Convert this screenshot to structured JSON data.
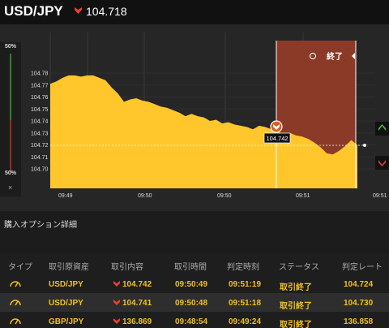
{
  "header": {
    "title": "USD/JPY",
    "price": "104.718",
    "direction": "down"
  },
  "chart": {
    "y_ticks": [
      "104.78",
      "104.77",
      "104.76",
      "104.75",
      "104.74",
      "104.73",
      "104.72",
      "104.71",
      "104.70"
    ],
    "x_ticks": [
      "09:49",
      "09:50",
      "09:50",
      "09:51",
      "09:51"
    ],
    "end_label": "終了",
    "current_price_label": "104.742",
    "percent_top": "50%",
    "percent_bottom": "50%",
    "close_glyph": "×",
    "colors": {
      "fill": "#ffc72c",
      "period": "#8c3a28",
      "bg": "#262626"
    },
    "price_series": [
      104.771,
      104.773,
      104.776,
      104.778,
      104.778,
      104.777,
      104.778,
      104.778,
      104.776,
      104.774,
      104.768,
      104.763,
      104.756,
      104.758,
      104.759,
      104.757,
      104.756,
      104.754,
      104.752,
      104.751,
      104.749,
      104.747,
      104.744,
      104.746,
      104.744,
      104.743,
      104.74,
      104.741,
      104.738,
      104.739,
      104.737,
      104.736,
      104.735,
      104.733,
      104.736,
      104.735,
      104.733,
      104.731,
      104.729,
      104.73,
      104.728,
      104.727,
      104.725,
      104.722,
      104.718,
      104.713,
      104.712,
      104.715,
      104.719,
      104.724,
      104.72
    ]
  },
  "section": {
    "title": "購入オプション詳細"
  },
  "table": {
    "headers": [
      "タイプ",
      "取引原資産",
      "取引内容",
      "取引時間",
      "判定時刻",
      "ステータス",
      "判定レート"
    ],
    "rows": [
      {
        "asset": "USD/JPY",
        "rate": "104.742",
        "time": "09:50:49",
        "judge": "09:51:19",
        "status": "取引終了",
        "result": "104.724",
        "direction": "down"
      },
      {
        "asset": "USD/JPY",
        "rate": "104.741",
        "time": "09:50:48",
        "judge": "09:51:18",
        "status": "取引終了",
        "result": "104.730",
        "direction": "down"
      },
      {
        "asset": "GBP/JPY",
        "rate": "136.869",
        "time": "09:48:54",
        "judge": "09:49:24",
        "status": "取引終了",
        "result": "136.858",
        "direction": "down"
      }
    ]
  }
}
